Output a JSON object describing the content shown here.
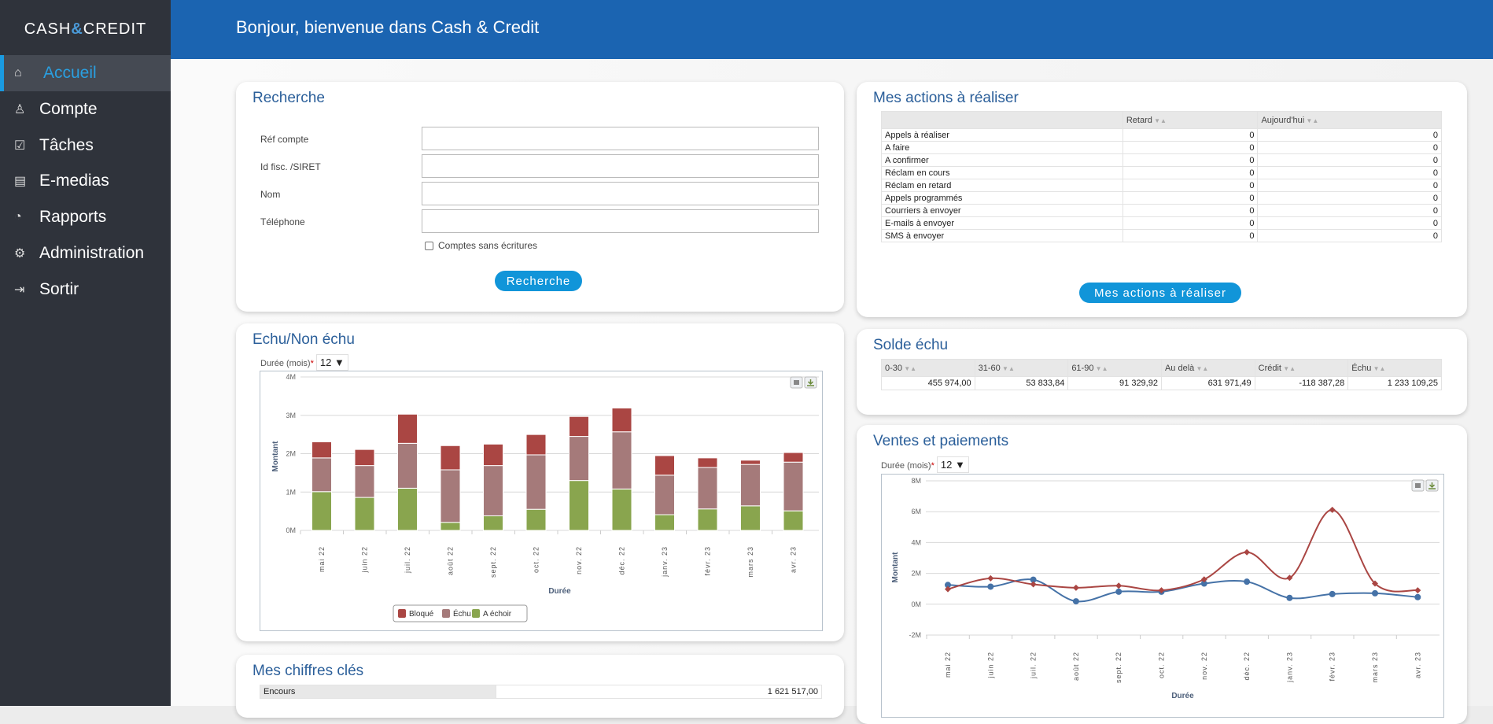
{
  "app": {
    "logo": "CASH & CREDIT",
    "logo_left": "CASH",
    "logo_amp": "&",
    "logo_right": "CREDIT",
    "header_title": "Bonjour, bienvenue dans Cash & Credit"
  },
  "sidebar": {
    "items": [
      {
        "label": "Accueil",
        "icon": "home-icon",
        "glyph": "⌂",
        "active": true
      },
      {
        "label": "Compte",
        "icon": "user-icon",
        "glyph": "♙"
      },
      {
        "label": "Tâches",
        "icon": "clipboard-check-icon",
        "glyph": "☑"
      },
      {
        "label": "E-medias",
        "icon": "document-icon",
        "glyph": "▤"
      },
      {
        "label": "Rapports",
        "icon": "pie-chart-icon",
        "glyph": "◔"
      },
      {
        "label": "Administration",
        "icon": "gear-icon",
        "glyph": "⚙"
      },
      {
        "label": "Sortir",
        "icon": "logout-icon",
        "glyph": "⇥"
      }
    ]
  },
  "recherche": {
    "title": "Recherche",
    "fields": [
      {
        "label": "Réf compte",
        "value": ""
      },
      {
        "label": "Id fisc. /SIRET",
        "value": ""
      },
      {
        "label": "Nom",
        "value": ""
      },
      {
        "label": "Téléphone",
        "value": ""
      }
    ],
    "checkbox_label": "Comptes sans écritures",
    "checkbox_checked": false,
    "button": "Recherche"
  },
  "actions": {
    "title": "Mes actions à réaliser",
    "columns": [
      "",
      "Retard",
      "Aujourd'hui"
    ],
    "rows": [
      [
        "Appels à réaliser",
        "0",
        "0"
      ],
      [
        "A faire",
        "0",
        "0"
      ],
      [
        "A confirmer",
        "0",
        "0"
      ],
      [
        "Réclam en cours",
        "0",
        "0"
      ],
      [
        "Réclam en retard",
        "0",
        "0"
      ],
      [
        "Appels programmés",
        "0",
        "0"
      ],
      [
        "Courriers à envoyer",
        "0",
        "0"
      ],
      [
        "E-mails à envoyer",
        "0",
        "0"
      ],
      [
        "SMS à envoyer",
        "0",
        "0"
      ]
    ],
    "button": "Mes actions à réaliser"
  },
  "solde": {
    "title": "Solde échu",
    "columns": [
      "0-30",
      "31-60",
      "61-90",
      "Au delà",
      "Crédit",
      "Échu"
    ],
    "values": [
      "455 974,00",
      "53 833,84",
      "91 329,92",
      "631 971,49",
      "-118 387,28",
      "1 233 109,25"
    ]
  },
  "echu_card": {
    "title": "Echu/Non échu",
    "duree_label": "Durée (mois)",
    "required": "*",
    "duree_value": "12"
  },
  "ventes_card": {
    "title": "Ventes et paiements",
    "duree_label": "Durée (mois)",
    "required": "*",
    "duree_value": "12"
  },
  "chiffres": {
    "title": "Mes chiffres clés",
    "rows": [
      [
        "Encours",
        "1 621 517,00"
      ]
    ]
  },
  "chart_data": [
    {
      "type": "bar",
      "stacked": true,
      "xlabel": "Durée",
      "ylabel": "Montant",
      "ylim": [
        0,
        4
      ],
      "yticks": [
        "0M",
        "1M",
        "2M",
        "3M",
        "4M"
      ],
      "unit": "M",
      "categories": [
        "mai 22",
        "juin 22",
        "juil. 22",
        "août 22",
        "sept. 22",
        "oct. 22",
        "nov. 22",
        "déc. 22",
        "janv. 23",
        "févr. 23",
        "mars 23",
        "avr. 23"
      ],
      "series": [
        {
          "name": "A échoir",
          "color": "#89a54e",
          "values": [
            1.01,
            0.86,
            1.1,
            0.21,
            0.38,
            0.55,
            1.3,
            1.08,
            0.41,
            0.56,
            0.64,
            0.51
          ]
        },
        {
          "name": "Échu",
          "color": "#a57a7a",
          "values": [
            0.88,
            0.83,
            1.17,
            1.37,
            1.31,
            1.42,
            1.15,
            1.49,
            1.03,
            1.08,
            1.08,
            1.27
          ]
        },
        {
          "name": "Bloqué",
          "color": "#aa4643",
          "values": [
            0.42,
            0.42,
            0.76,
            0.63,
            0.56,
            0.53,
            0.52,
            0.62,
            0.51,
            0.25,
            0.11,
            0.25
          ]
        }
      ],
      "legend": [
        "Bloqué",
        "Échu",
        "A échoir"
      ],
      "legend_placement": "bottom",
      "grid": true
    },
    {
      "type": "line",
      "smooth": true,
      "xlabel": "Durée",
      "ylabel": "Montant",
      "ylim": [
        -2,
        8
      ],
      "yticks": [
        "-2M",
        "0M",
        "2M",
        "4M",
        "6M",
        "8M"
      ],
      "unit": "M",
      "categories": [
        "mai 22",
        "juin 22",
        "juil. 22",
        "août 22",
        "sept. 22",
        "oct. 22",
        "nov. 22",
        "déc. 22",
        "janv. 23",
        "févr. 23",
        "mars 23",
        "avr. 23"
      ],
      "series": [
        {
          "color": "#4572a7",
          "marker": "circle",
          "values": [
            1.25,
            1.14,
            1.59,
            0.19,
            0.81,
            0.81,
            1.34,
            1.46,
            0.41,
            0.66,
            0.71,
            0.46
          ]
        },
        {
          "color": "#aa4643",
          "marker": "diamond",
          "values": [
            0.98,
            1.68,
            1.29,
            1.07,
            1.2,
            0.9,
            1.61,
            3.37,
            1.71,
            6.12,
            1.34,
            0.9
          ]
        }
      ],
      "grid": true
    }
  ]
}
